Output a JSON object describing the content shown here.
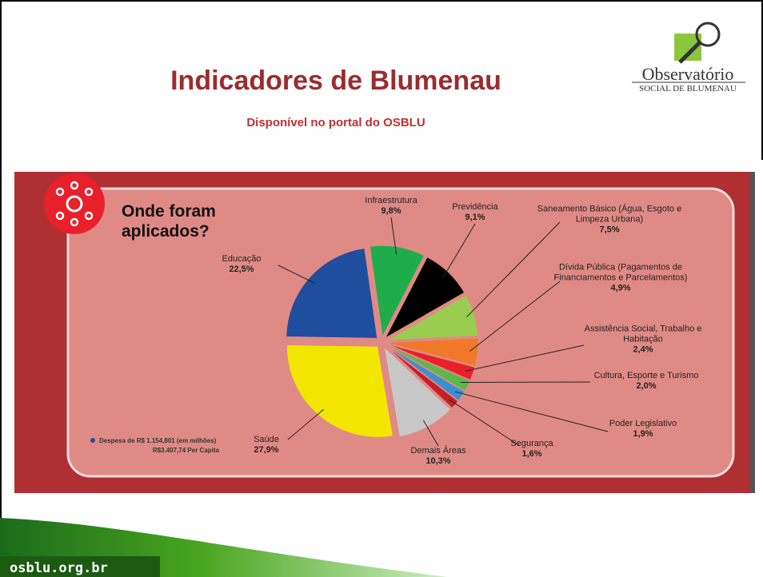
{
  "header": {
    "title": "Indicadores de Blumenau",
    "subtitle": "Disponível no portal do OSBLU",
    "logo_name": "Observatório",
    "logo_sub": "SOCIAL DE BLUMENAU"
  },
  "chart_data": {
    "type": "pie",
    "title": "Onde foram aplicados?",
    "categories": [
      "Infraestrutura",
      "Previdência",
      "Saneamento Básico (Água, Esgoto e Limpeza Urbana)",
      "Dívida Pública (Pagamentos de Financiamentos e Parcelamentos)",
      "Assistência Social, Trabalho e Habitação",
      "Cultura, Esporte e Turismo",
      "Poder Legislativo",
      "Segurança",
      "Demais Áreas",
      "Saúde",
      "Educação"
    ],
    "values": [
      9.8,
      9.1,
      7.5,
      4.9,
      2.4,
      2.0,
      1.9,
      1.6,
      10.3,
      27.9,
      22.5
    ],
    "value_labels": [
      "9,8%",
      "9,1%",
      "7,5%",
      "4,9%",
      "2,4%",
      "2,0%",
      "1,9%",
      "1,6%",
      "10,3%",
      "27,9%",
      "22,5%"
    ],
    "colors": [
      "#1fad4b",
      "#000000",
      "#9acd4f",
      "#f07828",
      "#e8202a",
      "#5cb84a",
      "#3b8fd1",
      "#c4202a",
      "#c8c8c8",
      "#f2e600",
      "#1f4e9e"
    ],
    "note": [
      "Despesa de R$ 1.154,801 (em milhões)",
      "R$3.407,74 Per Capita"
    ]
  },
  "footer": {
    "url": "osblu.org.br"
  }
}
